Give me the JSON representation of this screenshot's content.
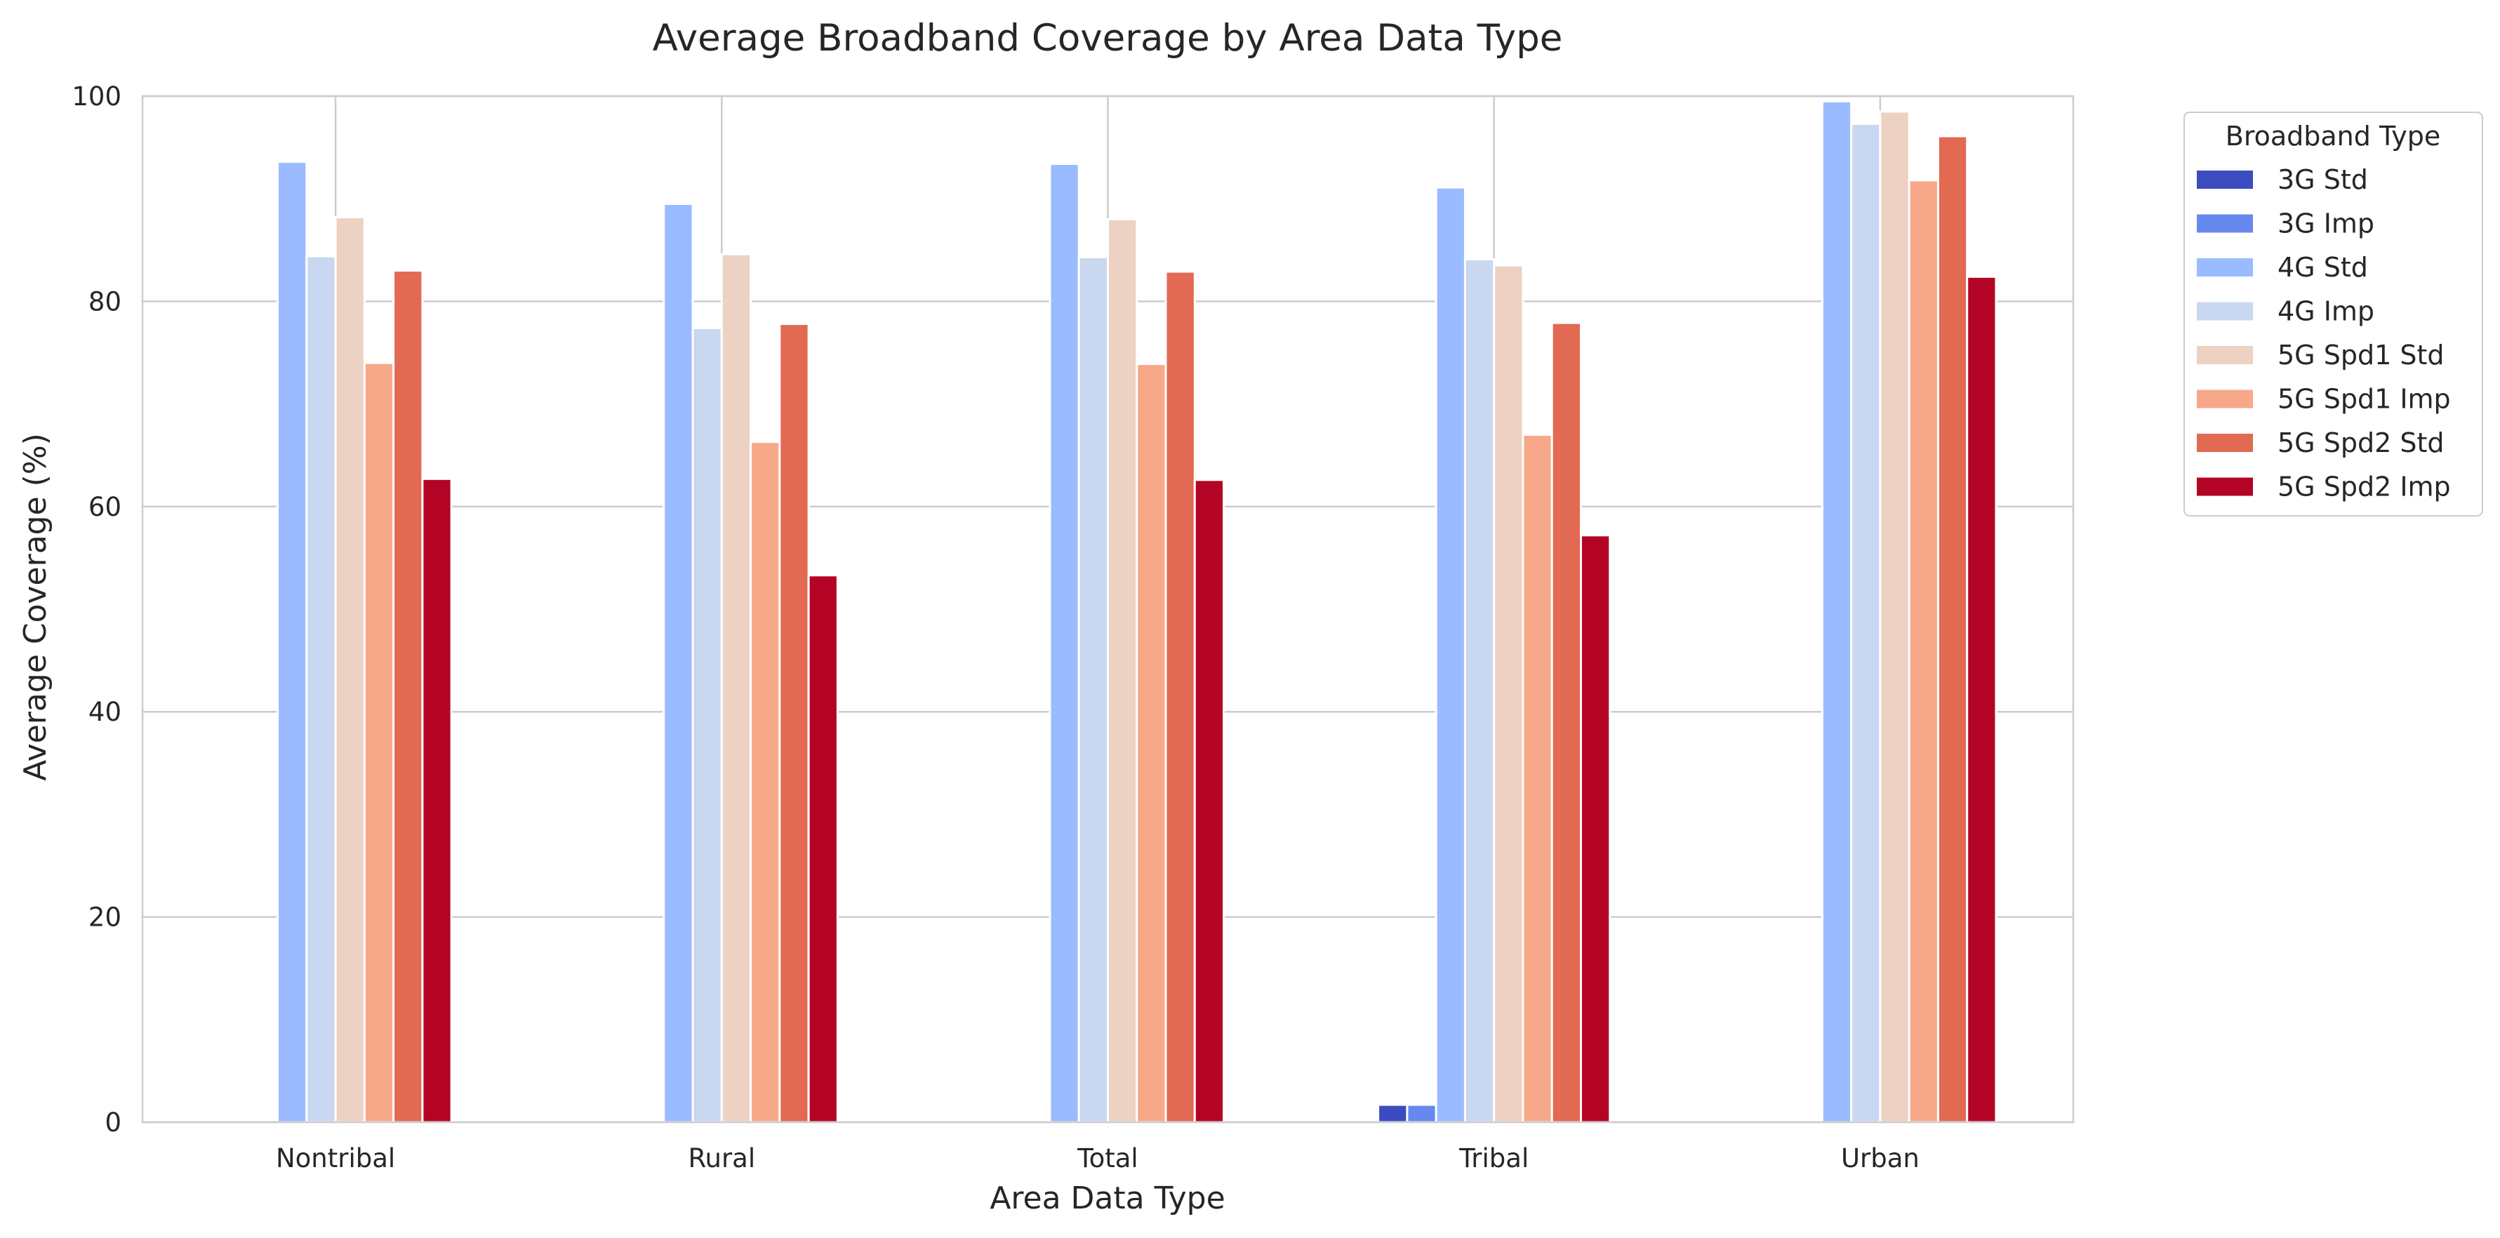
{
  "chart_data": {
    "type": "bar",
    "title": "Average Broadband Coverage by Area Data Type",
    "xlabel": "Area Data Type",
    "ylabel": "Average Coverage (%)",
    "ylim": [
      0,
      100
    ],
    "yticks": [
      0,
      20,
      40,
      60,
      80,
      100
    ],
    "grid": true,
    "legend": {
      "title": "Broadband Type",
      "placement": "outside-top-right"
    },
    "categories": [
      "Nontribal",
      "Rural",
      "Total",
      "Tribal",
      "Urban"
    ],
    "series": [
      {
        "name": "3G Std",
        "color": "#3b4cc0",
        "values": [
          0,
          0,
          0,
          1.7,
          0
        ]
      },
      {
        "name": "3G Imp",
        "color": "#6788ee",
        "values": [
          0,
          0,
          0,
          1.7,
          0
        ]
      },
      {
        "name": "4G Std",
        "color": "#9abbff",
        "values": [
          93.6,
          89.5,
          93.4,
          91.1,
          99.5
        ]
      },
      {
        "name": "4G Imp",
        "color": "#c9d7f0",
        "values": [
          84.4,
          77.4,
          84.3,
          84.1,
          97.3
        ]
      },
      {
        "name": "5G Spd1 Std",
        "color": "#edd1c2",
        "values": [
          88.2,
          84.6,
          88.0,
          83.5,
          98.5
        ]
      },
      {
        "name": "5G Spd1 Imp",
        "color": "#f7a889",
        "values": [
          74.0,
          66.3,
          73.9,
          67.0,
          91.8
        ]
      },
      {
        "name": "5G Spd2 Std",
        "color": "#e26952",
        "values": [
          83.0,
          77.8,
          82.9,
          77.9,
          96.1
        ]
      },
      {
        "name": "5G Spd2 Imp",
        "color": "#b40426",
        "values": [
          62.7,
          53.3,
          62.6,
          57.2,
          82.4
        ]
      }
    ]
  }
}
